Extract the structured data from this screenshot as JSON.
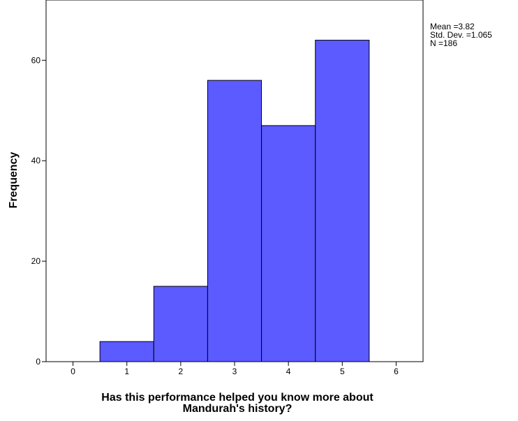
{
  "chart_data": {
    "type": "bar",
    "subtype": "histogram",
    "title": "",
    "xlabel_lines": [
      "Has this performance helped you know more about",
      "Mandurah's history?"
    ],
    "ylabel": "Frequency",
    "x_ticks": [
      0,
      1,
      2,
      3,
      4,
      5,
      6
    ],
    "y_ticks": [
      0,
      20,
      40,
      60
    ],
    "xlim": [
      -0.5,
      6.5
    ],
    "ylim": [
      0,
      72
    ],
    "bins": [
      {
        "center": 1,
        "value": 4
      },
      {
        "center": 2,
        "value": 15
      },
      {
        "center": 3,
        "value": 56
      },
      {
        "center": 4,
        "value": 47
      },
      {
        "center": 5,
        "value": 64
      }
    ],
    "bin_width": 1,
    "bar_color": "#5b5bff",
    "bar_edge_color": "#000000",
    "grid": false,
    "legend": "none",
    "stats": [
      "Mean =3.82",
      "Std. Dev. =1.065",
      "N =186"
    ]
  }
}
